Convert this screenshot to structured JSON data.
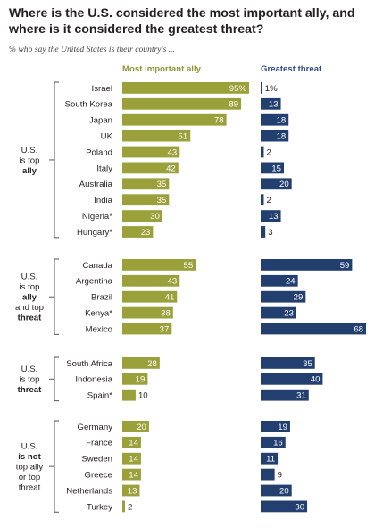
{
  "title": "Where is the U.S. considered the most important ally, and where is it considered the greatest threat?",
  "subtitle": "% who say the United States is their country's ...",
  "colors": {
    "ally": "#9aa13a",
    "threat": "#233f70",
    "ally_text": "#8f9436",
    "threat_text": "#2f4a7e"
  },
  "chart_data": {
    "type": "bar",
    "series": [
      {
        "name": "Most important ally",
        "key": "ally"
      },
      {
        "name": "Greatest threat",
        "key": "threat"
      }
    ],
    "groups": [
      {
        "label_lines": [
          {
            "text": "U.S.",
            "hl": false
          },
          {
            "text": "is top",
            "hl": false
          },
          {
            "text": "ally",
            "hl": "ally"
          }
        ],
        "rows": [
          {
            "country": "Israel",
            "ally": 95,
            "ally_label": "95%",
            "threat": 1,
            "threat_label": "1%"
          },
          {
            "country": "South Korea",
            "ally": 89,
            "ally_label": "89",
            "threat": 13,
            "threat_label": "13"
          },
          {
            "country": "Japan",
            "ally": 78,
            "ally_label": "78",
            "threat": 18,
            "threat_label": "18"
          },
          {
            "country": "UK",
            "ally": 51,
            "ally_label": "51",
            "threat": 18,
            "threat_label": "18"
          },
          {
            "country": "Poland",
            "ally": 43,
            "ally_label": "43",
            "threat": 2,
            "threat_label": "2"
          },
          {
            "country": "Italy",
            "ally": 42,
            "ally_label": "42",
            "threat": 15,
            "threat_label": "15"
          },
          {
            "country": "Australia",
            "ally": 35,
            "ally_label": "35",
            "threat": 20,
            "threat_label": "20"
          },
          {
            "country": "India",
            "ally": 35,
            "ally_label": "35",
            "threat": 2,
            "threat_label": "2"
          },
          {
            "country": "Nigeria*",
            "ally": 30,
            "ally_label": "30",
            "threat": 13,
            "threat_label": "13"
          },
          {
            "country": "Hungary*",
            "ally": 23,
            "ally_label": "23",
            "threat": 3,
            "threat_label": "3"
          }
        ]
      },
      {
        "label_lines": [
          {
            "text": "U.S.",
            "hl": false
          },
          {
            "text": "is top",
            "hl": false
          },
          {
            "text": "ally",
            "hl": "ally"
          },
          {
            "text": "and top",
            "hl": false
          },
          {
            "text": "threat",
            "hl": "threat"
          }
        ],
        "rows": [
          {
            "country": "Canada",
            "ally": 55,
            "ally_label": "55",
            "threat": 59,
            "threat_label": "59"
          },
          {
            "country": "Argentina",
            "ally": 43,
            "ally_label": "43",
            "threat": 24,
            "threat_label": "24"
          },
          {
            "country": "Brazil",
            "ally": 41,
            "ally_label": "41",
            "threat": 29,
            "threat_label": "29"
          },
          {
            "country": "Kenya*",
            "ally": 38,
            "ally_label": "38",
            "threat": 23,
            "threat_label": "23"
          },
          {
            "country": "Mexico",
            "ally": 37,
            "ally_label": "37",
            "threat": 68,
            "threat_label": "68"
          }
        ]
      },
      {
        "label_lines": [
          {
            "text": "U.S.",
            "hl": false
          },
          {
            "text": "is top",
            "hl": false
          },
          {
            "text": "threat",
            "hl": "threat"
          }
        ],
        "rows": [
          {
            "country": "South Africa",
            "ally": 28,
            "ally_label": "28",
            "threat": 35,
            "threat_label": "35"
          },
          {
            "country": "Indonesia",
            "ally": 19,
            "ally_label": "19",
            "threat": 40,
            "threat_label": "40"
          },
          {
            "country": "Spain*",
            "ally": 10,
            "ally_label": "10",
            "threat": 31,
            "threat_label": "31"
          }
        ]
      },
      {
        "label_lines": [
          {
            "text": "U.S.",
            "hl": false
          },
          {
            "text": "is not",
            "hl": "bold"
          },
          {
            "text": "top ally",
            "hl": false
          },
          {
            "text": "or top",
            "hl": false
          },
          {
            "text": "threat",
            "hl": false
          }
        ],
        "rows": [
          {
            "country": "Germany",
            "ally": 20,
            "ally_label": "20",
            "threat": 19,
            "threat_label": "19"
          },
          {
            "country": "France",
            "ally": 14,
            "ally_label": "14",
            "threat": 16,
            "threat_label": "16"
          },
          {
            "country": "Sweden",
            "ally": 14,
            "ally_label": "14",
            "threat": 11,
            "threat_label": "11"
          },
          {
            "country": "Greece",
            "ally": 14,
            "ally_label": "14",
            "threat": 9,
            "threat_label": "9"
          },
          {
            "country": "Netherlands",
            "ally": 13,
            "ally_label": "13",
            "threat": 20,
            "threat_label": "20"
          },
          {
            "country": "Turkey",
            "ally": 2,
            "ally_label": "2",
            "threat": 30,
            "threat_label": "30"
          }
        ]
      }
    ]
  }
}
